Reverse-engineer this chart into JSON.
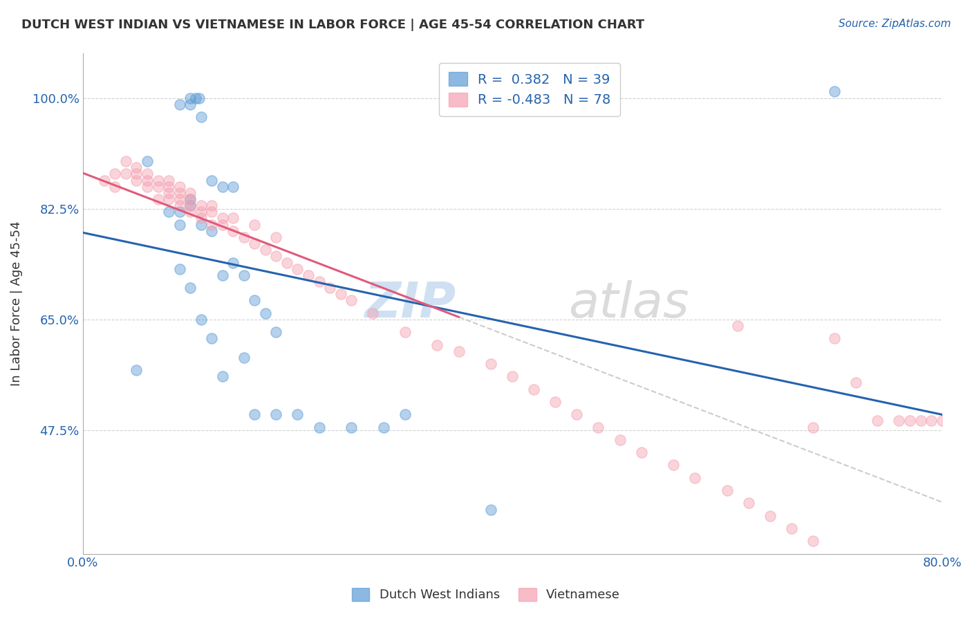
{
  "title": "DUTCH WEST INDIAN VS VIETNAMESE IN LABOR FORCE | AGE 45-54 CORRELATION CHART",
  "source": "Source: ZipAtlas.com",
  "ylabel": "In Labor Force | Age 45-54",
  "xlim": [
    0.0,
    0.8
  ],
  "ylim": [
    0.28,
    1.07
  ],
  "ytick_labels": [
    "47.5%",
    "65.0%",
    "82.5%",
    "100.0%"
  ],
  "ytick_values": [
    0.475,
    0.65,
    0.825,
    1.0
  ],
  "grid_color": "#cccccc",
  "background_color": "#ffffff",
  "blue_color": "#5b9bd5",
  "pink_color": "#f4a0b0",
  "blue_line_color": "#2563ae",
  "pink_line_color": "#e05a7a",
  "legend_blue_R": "0.382",
  "legend_blue_N": "39",
  "legend_pink_R": "-0.483",
  "legend_pink_N": "78",
  "legend_label_blue": "Dutch West Indians",
  "legend_label_pink": "Vietnamese",
  "blue_scatter_x": [
    0.05,
    0.06,
    0.09,
    0.1,
    0.1,
    0.105,
    0.108,
    0.11,
    0.12,
    0.13,
    0.14,
    0.08,
    0.09,
    0.09,
    0.1,
    0.1,
    0.11,
    0.12,
    0.13,
    0.14,
    0.15,
    0.16,
    0.17,
    0.18,
    0.09,
    0.1,
    0.11,
    0.12,
    0.13,
    0.15,
    0.16,
    0.18,
    0.2,
    0.22,
    0.25,
    0.28,
    0.3,
    0.38,
    0.7
  ],
  "blue_scatter_y": [
    0.57,
    0.9,
    0.99,
    1.0,
    0.99,
    1.0,
    1.0,
    0.97,
    0.87,
    0.86,
    0.86,
    0.82,
    0.8,
    0.82,
    0.83,
    0.84,
    0.8,
    0.79,
    0.72,
    0.74,
    0.72,
    0.68,
    0.66,
    0.63,
    0.73,
    0.7,
    0.65,
    0.62,
    0.56,
    0.59,
    0.5,
    0.5,
    0.5,
    0.48,
    0.48,
    0.48,
    0.5,
    0.35,
    1.01
  ],
  "pink_scatter_x": [
    0.02,
    0.03,
    0.03,
    0.04,
    0.04,
    0.05,
    0.05,
    0.05,
    0.06,
    0.06,
    0.06,
    0.07,
    0.07,
    0.07,
    0.08,
    0.08,
    0.08,
    0.08,
    0.09,
    0.09,
    0.09,
    0.09,
    0.1,
    0.1,
    0.1,
    0.1,
    0.11,
    0.11,
    0.11,
    0.12,
    0.12,
    0.12,
    0.13,
    0.13,
    0.14,
    0.14,
    0.15,
    0.16,
    0.16,
    0.17,
    0.18,
    0.18,
    0.19,
    0.2,
    0.21,
    0.22,
    0.23,
    0.24,
    0.25,
    0.27,
    0.3,
    0.33,
    0.35,
    0.38,
    0.4,
    0.42,
    0.44,
    0.46,
    0.48,
    0.5,
    0.52,
    0.55,
    0.57,
    0.6,
    0.62,
    0.64,
    0.66,
    0.68,
    0.7,
    0.72,
    0.74,
    0.76,
    0.77,
    0.78,
    0.79,
    0.8,
    0.61,
    0.68
  ],
  "pink_scatter_y": [
    0.87,
    0.88,
    0.86,
    0.9,
    0.88,
    0.88,
    0.87,
    0.89,
    0.87,
    0.86,
    0.88,
    0.87,
    0.86,
    0.84,
    0.86,
    0.85,
    0.84,
    0.87,
    0.84,
    0.85,
    0.83,
    0.86,
    0.84,
    0.83,
    0.82,
    0.85,
    0.83,
    0.82,
    0.81,
    0.82,
    0.8,
    0.83,
    0.81,
    0.8,
    0.79,
    0.81,
    0.78,
    0.77,
    0.8,
    0.76,
    0.75,
    0.78,
    0.74,
    0.73,
    0.72,
    0.71,
    0.7,
    0.69,
    0.68,
    0.66,
    0.63,
    0.61,
    0.6,
    0.58,
    0.56,
    0.54,
    0.52,
    0.5,
    0.48,
    0.46,
    0.44,
    0.42,
    0.4,
    0.38,
    0.36,
    0.34,
    0.32,
    0.3,
    0.62,
    0.55,
    0.49,
    0.49,
    0.49,
    0.49,
    0.49,
    0.49,
    0.64,
    0.48
  ]
}
